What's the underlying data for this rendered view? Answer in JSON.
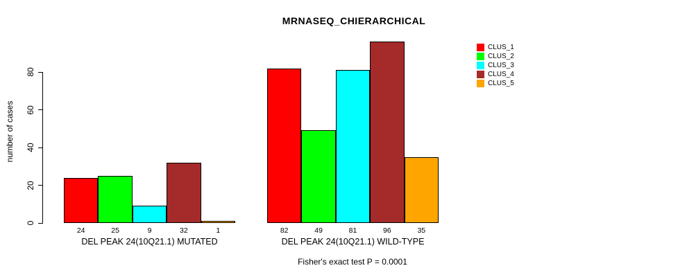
{
  "chart_data": {
    "type": "bar",
    "title": "MRNASEQ_CHIERARCHICAL",
    "ylabel": "number of cases",
    "annotation": "Fisher's exact test P = 0.0001",
    "ylim": [
      0,
      96
    ],
    "yticks": [
      0,
      20,
      40,
      60,
      80
    ],
    "grid": false,
    "legend_position": "right",
    "series": [
      {
        "name": "CLUS_1",
        "color": "#FF0000"
      },
      {
        "name": "CLUS_2",
        "color": "#00FF00"
      },
      {
        "name": "CLUS_3",
        "color": "#00FFFF"
      },
      {
        "name": "CLUS_4",
        "color": "#A52A2A"
      },
      {
        "name": "CLUS_5",
        "color": "#FFA500"
      }
    ],
    "groups": [
      {
        "label": "DEL PEAK 24(10Q21.1) MUTATED",
        "values": [
          24,
          25,
          9,
          32,
          1
        ]
      },
      {
        "label": "DEL PEAK 24(10Q21.1) WILD-TYPE",
        "values": [
          82,
          49,
          81,
          96,
          35
        ]
      }
    ]
  }
}
